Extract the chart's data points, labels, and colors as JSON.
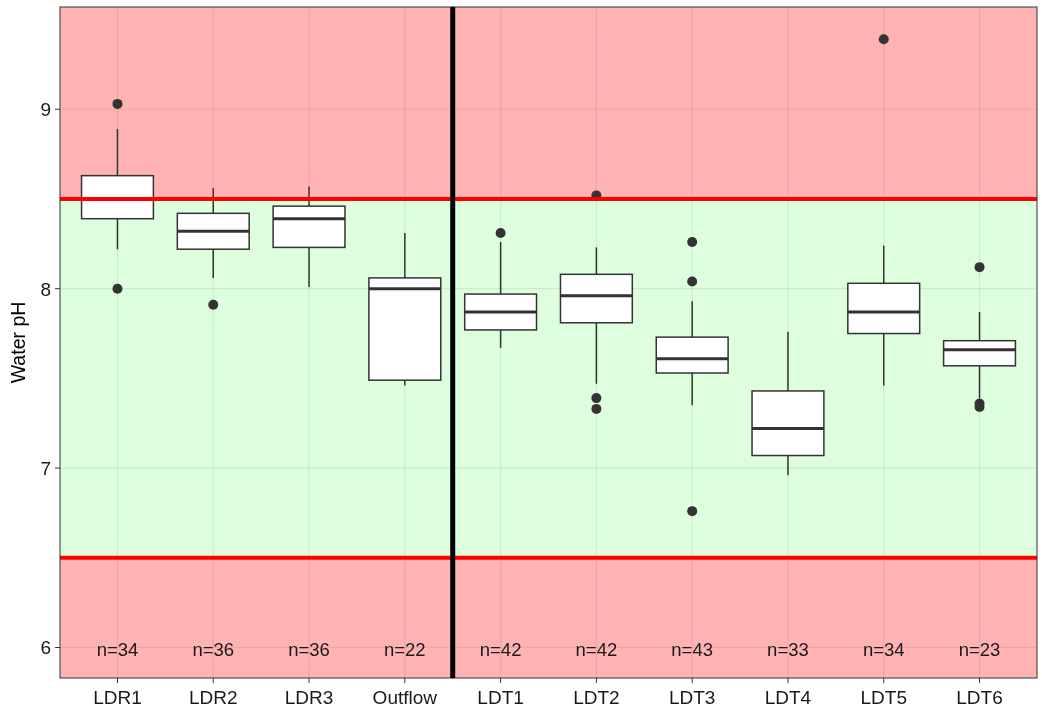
{
  "chart_data": [
    {
      "type": "box",
      "ylabel": "Water pH",
      "categories": [
        "LDR1",
        "LDR2",
        "LDR3",
        "Outflow"
      ],
      "boxes": [
        {
          "low": 8.22,
          "q1": 8.39,
          "median": 8.5,
          "q3": 8.63,
          "high": 8.89,
          "outliers": [
            9.03,
            8.0
          ]
        },
        {
          "low": 8.06,
          "q1": 8.22,
          "median": 8.32,
          "q3": 8.42,
          "high": 8.56,
          "outliers": [
            7.91
          ]
        },
        {
          "low": 8.01,
          "q1": 8.23,
          "median": 8.39,
          "q3": 8.46,
          "high": 8.57
        },
        {
          "low": 7.46,
          "q1": 7.49,
          "median": 8.0,
          "q3": 8.06,
          "high": 8.31
        }
      ],
      "ylim": [
        5.83,
        9.57
      ],
      "yticks": [
        6,
        7,
        8,
        9
      ],
      "grid": true,
      "bands": [
        {
          "axis": "y",
          "from": 8.5,
          "to": 9.57,
          "color": "#ffb3b3"
        },
        {
          "axis": "y",
          "from": 6.5,
          "to": 8.5,
          "color": "#deffde"
        },
        {
          "axis": "y",
          "from": 5.83,
          "to": 6.5,
          "color": "#ffb3b3"
        }
      ],
      "ref_lines": [
        {
          "axis": "y",
          "value": 8.5,
          "color": "#ff0000"
        },
        {
          "axis": "y",
          "value": 6.5,
          "color": "#ff0000"
        }
      ],
      "annotations": [
        "n=34",
        "n=36",
        "n=36",
        "n=22"
      ]
    },
    {
      "type": "box",
      "categories": [
        "LDT1",
        "LDT2",
        "LDT3",
        "LDT4",
        "LDT5",
        "LDT6"
      ],
      "boxes": [
        {
          "low": 7.67,
          "q1": 7.77,
          "median": 7.87,
          "q3": 7.97,
          "high": 8.26,
          "outliers": [
            8.31
          ]
        },
        {
          "low": 7.47,
          "q1": 7.81,
          "median": 7.96,
          "q3": 8.08,
          "high": 8.23,
          "outliers": [
            8.52,
            7.39,
            7.33
          ]
        },
        {
          "low": 7.35,
          "q1": 7.53,
          "median": 7.61,
          "q3": 7.73,
          "high": 7.93,
          "outliers": [
            8.26,
            8.04,
            6.76
          ]
        },
        {
          "low": 6.96,
          "q1": 7.07,
          "median": 7.22,
          "q3": 7.43,
          "high": 7.76
        },
        {
          "low": 7.46,
          "q1": 7.75,
          "median": 7.87,
          "q3": 8.03,
          "high": 8.24,
          "outliers": [
            9.39
          ]
        },
        {
          "low": 7.39,
          "q1": 7.57,
          "median": 7.66,
          "q3": 7.71,
          "high": 7.87,
          "outliers": [
            8.12,
            7.36,
            7.34
          ]
        }
      ],
      "ylim": [
        5.83,
        9.57
      ],
      "yticks": [
        6,
        7,
        8,
        9
      ],
      "grid": true,
      "tick_labels": "x",
      "bands": [
        {
          "axis": "y",
          "from": 8.5,
          "to": 9.57,
          "color": "#ffb3b3"
        },
        {
          "axis": "y",
          "from": 6.5,
          "to": 8.5,
          "color": "#deffde"
        },
        {
          "axis": "y",
          "from": 5.83,
          "to": 6.5,
          "color": "#ffb3b3"
        }
      ],
      "ref_lines": [
        {
          "axis": "y",
          "value": 8.5,
          "color": "#ff0000"
        },
        {
          "axis": "y",
          "value": 6.5,
          "color": "#ff0000"
        }
      ],
      "annotations": [
        "n=42",
        "n=42",
        "n=43",
        "n=33",
        "n=34",
        "n=23"
      ]
    }
  ]
}
